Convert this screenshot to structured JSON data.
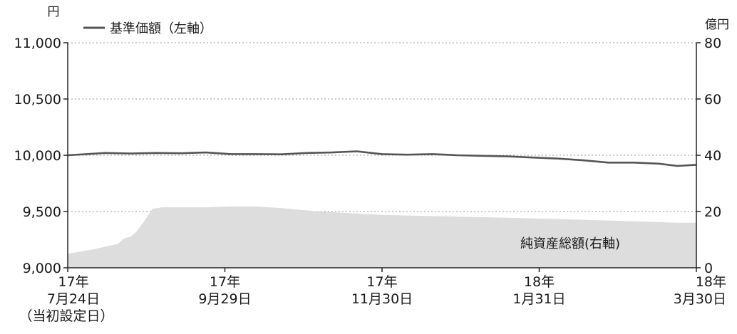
{
  "chart_data": {
    "type": "line",
    "title": "",
    "left_axis": {
      "unit": "円",
      "ticks": [
        "9,000",
        "9,500",
        "10,000",
        "10,500",
        "11,000"
      ],
      "ylim": [
        9000,
        11000
      ]
    },
    "right_axis": {
      "unit": "億円",
      "ticks": [
        "0",
        "20",
        "40",
        "60",
        "80"
      ],
      "ylim": [
        0,
        80
      ]
    },
    "x_ticks": [
      {
        "year": "17年",
        "date": "7月24日",
        "note": "（当初設定日）"
      },
      {
        "year": "17年",
        "date": "9月29日",
        "note": ""
      },
      {
        "year": "17年",
        "date": "11月30日",
        "note": ""
      },
      {
        "year": "18年",
        "date": "1月31日",
        "note": ""
      },
      {
        "year": "18年",
        "date": "3月30日",
        "note": ""
      }
    ],
    "grid": "dotted horizontal at left-axis ticks",
    "legend": {
      "position": "top-left",
      "line_label": "基準価額（左軸）"
    },
    "area_label": "純資産総額(右軸)",
    "series": [
      {
        "name": "基準価額（左軸）",
        "axis": "left",
        "kind": "line",
        "color": "#555555",
        "x": [
          0,
          0.03,
          0.06,
          0.1,
          0.14,
          0.18,
          0.22,
          0.26,
          0.3,
          0.34,
          0.38,
          0.42,
          0.46,
          0.5,
          0.54,
          0.58,
          0.62,
          0.66,
          0.7,
          0.74,
          0.78,
          0.82,
          0.86,
          0.9,
          0.94,
          0.97,
          1
        ],
        "values": [
          10000,
          10010,
          10020,
          10015,
          10020,
          10018,
          10025,
          10010,
          10010,
          10008,
          10020,
          10025,
          10035,
          10010,
          10005,
          10010,
          10000,
          9995,
          9990,
          9980,
          9970,
          9955,
          9935,
          9935,
          9925,
          9905,
          9915
        ]
      },
      {
        "name": "純資産総額(右軸)",
        "axis": "right",
        "kind": "area",
        "color": "#dddddd",
        "x": [
          0,
          0.04,
          0.08,
          0.09,
          0.1,
          0.11,
          0.12,
          0.135,
          0.15,
          0.18,
          0.22,
          0.26,
          0.3,
          0.34,
          0.4,
          0.5,
          0.6,
          0.7,
          0.8,
          0.9,
          0.97,
          1
        ],
        "values": [
          5,
          6.5,
          8.5,
          10.5,
          11,
          13,
          16,
          21,
          21.5,
          21.5,
          21.5,
          21.8,
          21.8,
          21.2,
          20,
          18.8,
          18.3,
          17.8,
          17.2,
          16.5,
          16,
          16
        ]
      }
    ]
  }
}
